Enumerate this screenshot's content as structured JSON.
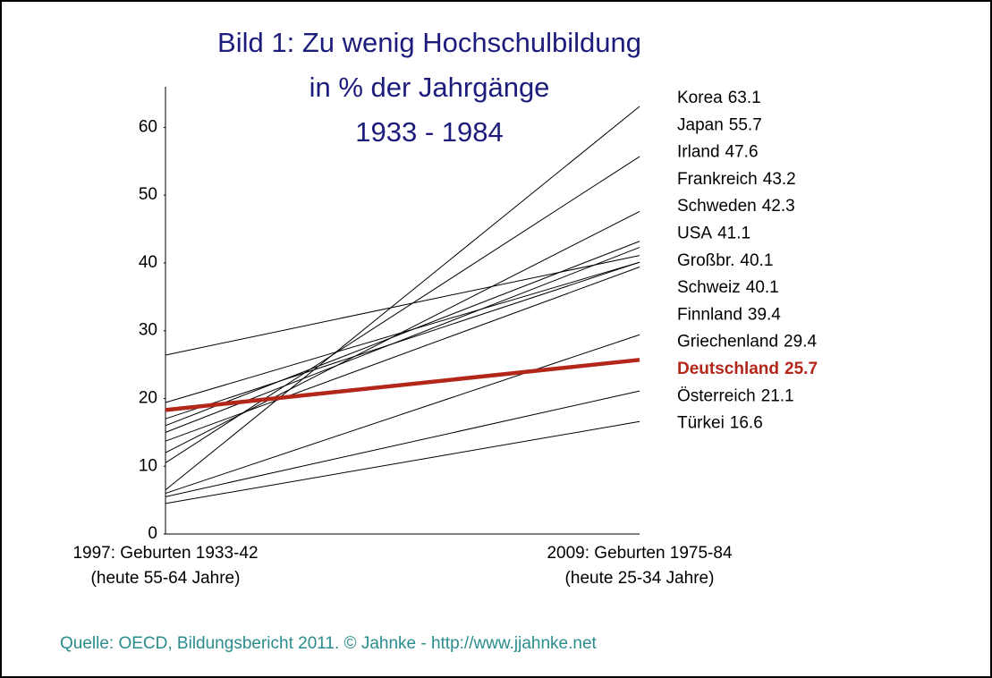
{
  "chart_data": {
    "type": "line",
    "title_lines": [
      "Bild 1: Zu wenig Hochschulbildung",
      "in % der Jahrgänge",
      "1933 - 1984"
    ],
    "categories": [
      "1997: Geburten 1933-42",
      "2009: Geburten 1975-84"
    ],
    "category_notes": [
      "(heute 55-64 Jahre)",
      "(heute 25-34 Jahre)"
    ],
    "source": "Quelle: OECD, Bildungsbericht 2011. © Jahnke - http://www.jjahnke.net",
    "ylim": [
      0,
      66
    ],
    "yticks": [
      0,
      10,
      20,
      30,
      40,
      50,
      60
    ],
    "series": [
      {
        "name": "Korea",
        "color": "#000000",
        "values": [
          6.5,
          63.1
        ]
      },
      {
        "name": "Japan",
        "color": "#000000",
        "values": [
          10.5,
          55.7
        ]
      },
      {
        "name": "Irland",
        "color": "#000000",
        "values": [
          12,
          47.6
        ]
      },
      {
        "name": "Frankreich",
        "color": "#000000",
        "values": [
          16,
          43.2
        ]
      },
      {
        "name": "Schweden",
        "color": "#000000",
        "values": [
          15,
          42.3
        ]
      },
      {
        "name": "USA",
        "color": "#000000",
        "values": [
          26.4,
          41.1
        ]
      },
      {
        "name": "Großbr.",
        "color": "#000000",
        "values": [
          17,
          40.1
        ]
      },
      {
        "name": "Schweiz",
        "color": "#000000",
        "values": [
          19.4,
          40.1
        ]
      },
      {
        "name": "Finnland",
        "color": "#000000",
        "values": [
          13.7,
          39.4
        ]
      },
      {
        "name": "Griechenland",
        "color": "#000000",
        "values": [
          6,
          29.4
        ]
      },
      {
        "name": "Deutschland",
        "color": "#b3261a",
        "highlight": true,
        "values": [
          18.3,
          25.7
        ]
      },
      {
        "name": "Österreich",
        "color": "#000000",
        "values": [
          5.5,
          21.1
        ]
      },
      {
        "name": "Türkei",
        "color": "#000000",
        "values": [
          4.5,
          16.6
        ]
      }
    ]
  }
}
